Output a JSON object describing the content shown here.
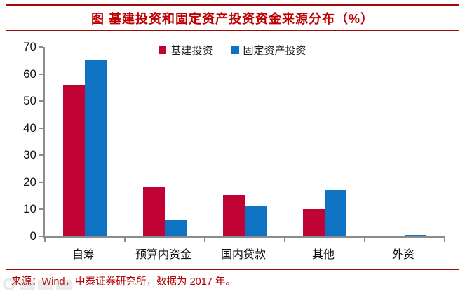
{
  "title": "图 基建投资和固定资产投资资金来源分布（%）",
  "footer": {
    "source_note": "来源：Wind，中泰证券研究所，数据为 2017 年。"
  },
  "colors": {
    "series1": "#c00334",
    "series2": "#0d73c2",
    "title_red": "#c00000",
    "rule_red": "#9e0b0b",
    "axis_gray": "#8c8c8c"
  },
  "chart_data": {
    "type": "bar",
    "title": "图 基建投资和固定资产投资资金来源分布（%）",
    "categories": [
      "自筹",
      "预算内资金",
      "国内贷款",
      "其他",
      "外资"
    ],
    "series": [
      {
        "name": "基建投资",
        "color": "#c00334",
        "values": [
          56,
          18.4,
          15.2,
          10.2,
          0.3
        ]
      },
      {
        "name": "固定资产投资",
        "color": "#0d73c2",
        "values": [
          65,
          6.1,
          11.4,
          17.2,
          0.5
        ]
      }
    ],
    "xlabel": "",
    "ylabel": "",
    "ylim": [
      0,
      70
    ],
    "ytick_step": 10,
    "grid": false,
    "legend_position": "top-center"
  }
}
